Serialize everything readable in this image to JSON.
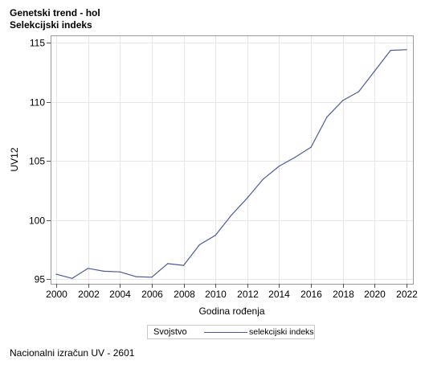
{
  "header": {
    "title": "Genetski trend - hol",
    "subtitle": "Selekcijski indeks"
  },
  "chart_data": {
    "type": "line",
    "xlabel": "Godina rođenja",
    "ylabel": "UV12",
    "xlim": [
      2000,
      2022
    ],
    "ylim": [
      95,
      115
    ],
    "x_ticks": [
      2000,
      2002,
      2004,
      2006,
      2008,
      2010,
      2012,
      2014,
      2016,
      2018,
      2020,
      2022
    ],
    "y_ticks": [
      95,
      100,
      105,
      110,
      115
    ],
    "grid": true,
    "legend": {
      "title": "Svojstvo",
      "position": "bottom"
    },
    "series": [
      {
        "name": "selekcijski indeks",
        "color": "#4a5a9a",
        "x": [
          2000,
          2001,
          2002,
          2003,
          2004,
          2005,
          2006,
          2007,
          2008,
          2009,
          2010,
          2011,
          2012,
          2013,
          2014,
          2015,
          2016,
          2017,
          2018,
          2019,
          2020,
          2021,
          2022
        ],
        "y": [
          95.4,
          95.05,
          95.9,
          95.65,
          95.6,
          95.2,
          95.15,
          96.3,
          96.15,
          97.9,
          98.7,
          100.4,
          101.85,
          103.45,
          104.55,
          105.3,
          106.15,
          108.7,
          110.1,
          110.85,
          112.6,
          114.35,
          114.4
        ]
      }
    ]
  },
  "footnote": "Nacionalni izračun UV - 2601"
}
